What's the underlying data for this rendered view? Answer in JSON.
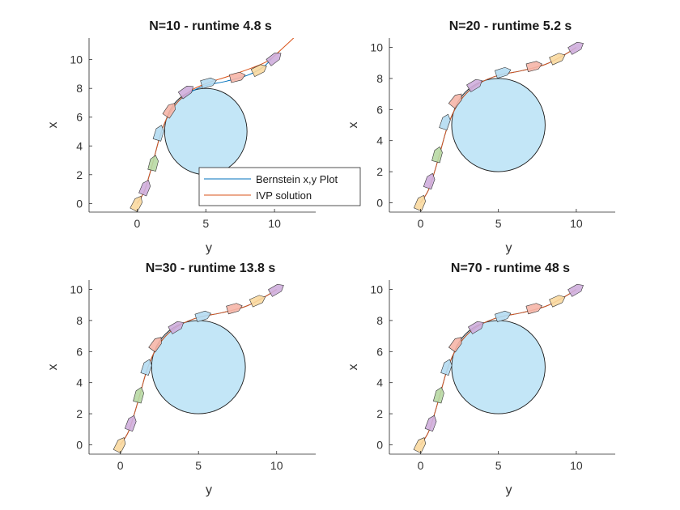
{
  "figure_bg": "#ffffff",
  "colors": {
    "bernstein": "#0072bd",
    "ivp": "#d95319",
    "obstacle_fill": "#c3e6f7",
    "obstacle_edge": "#1a1a1a",
    "vehicle_palette": [
      "#f9d9a0",
      "#cfaedd",
      "#b8d9a4",
      "#b4dcf2",
      "#f6b6a8",
      "#cfaedd",
      "#b4dcf2",
      "#f6b6a8",
      "#f9d9a0",
      "#cfaedd",
      "#b8d9a4"
    ]
  },
  "chart_data": [
    {
      "type": "line",
      "title": "N=10 - runtime 4.8 s",
      "xlabel": "y",
      "ylabel": "x",
      "xlim": [
        -3.5,
        13
      ],
      "ylim": [
        -0.6,
        11.5
      ],
      "xticks": [
        0,
        5,
        10
      ],
      "yticks": [
        0,
        2,
        4,
        6,
        8,
        10
      ],
      "grid": false,
      "legend": {
        "placement": "bottom-right",
        "entries": [
          "Bernstein x,y Plot",
          "IVP solution"
        ]
      },
      "obstacle": {
        "shape": "circle",
        "center": [
          5,
          5
        ],
        "radius": 3
      },
      "series": [
        {
          "name": "Bernstein x,y Plot",
          "color": "#0072bd",
          "points": [
            [
              0,
              0
            ],
            [
              0.5,
              0.8
            ],
            [
              0.9,
              2
            ],
            [
              1.3,
              3.4
            ],
            [
              1.7,
              4.8
            ],
            [
              2.2,
              6
            ],
            [
              2.9,
              7
            ],
            [
              3.8,
              7.7
            ],
            [
              5,
              8.2
            ],
            [
              6.5,
              8.5
            ],
            [
              8,
              8.9
            ],
            [
              9.2,
              9.5
            ],
            [
              10,
              10.3
            ]
          ]
        },
        {
          "name": "IVP solution",
          "color": "#d95319",
          "points": [
            [
              0,
              0
            ],
            [
              0.5,
              0.8
            ],
            [
              0.9,
              2
            ],
            [
              1.3,
              3.4
            ],
            [
              1.7,
              4.8
            ],
            [
              2.2,
              6
            ],
            [
              3,
              7.1
            ],
            [
              4,
              7.9
            ],
            [
              5.2,
              8.4
            ],
            [
              6.5,
              8.8
            ],
            [
              8,
              9.3
            ],
            [
              9.5,
              9.9
            ],
            [
              10.6,
              10.8
            ],
            [
              11.5,
              11.6
            ]
          ]
        }
      ],
      "vehicles": [
        [
          0,
          0
        ],
        [
          0.6,
          1.1
        ],
        [
          1.2,
          2.8
        ],
        [
          1.6,
          4.9
        ],
        [
          2.4,
          6.5
        ],
        [
          3.6,
          7.8
        ],
        [
          5.2,
          8.4
        ],
        [
          7.3,
          8.8
        ],
        [
          8.9,
          9.3
        ],
        [
          10,
          10.1
        ]
      ]
    },
    {
      "type": "line",
      "title": "N=20 - runtime 5.2 s",
      "xlabel": "y",
      "ylabel": "x",
      "xlim": [
        -2,
        12.5
      ],
      "ylim": [
        -0.6,
        10.6
      ],
      "xticks": [
        0,
        5,
        10
      ],
      "yticks": [
        0,
        2,
        4,
        6,
        8,
        10
      ],
      "grid": false,
      "obstacle": {
        "shape": "circle",
        "center": [
          5,
          5
        ],
        "radius": 3
      },
      "series": [
        {
          "name": "Bernstein x,y Plot",
          "color": "#0072bd",
          "points": [
            [
              0,
              0
            ],
            [
              0.5,
              0.8
            ],
            [
              0.9,
              2
            ],
            [
              1.3,
              3.4
            ],
            [
              1.7,
              4.8
            ],
            [
              2.2,
              6
            ],
            [
              2.9,
              7
            ],
            [
              3.8,
              7.7
            ],
            [
              5,
              8.2
            ],
            [
              6.5,
              8.5
            ],
            [
              8,
              8.9
            ],
            [
              9.2,
              9.5
            ],
            [
              10,
              10
            ]
          ]
        },
        {
          "name": "IVP solution",
          "color": "#d95319",
          "points": [
            [
              0,
              0
            ],
            [
              0.5,
              0.8
            ],
            [
              0.9,
              2
            ],
            [
              1.3,
              3.4
            ],
            [
              1.7,
              4.8
            ],
            [
              2.2,
              6
            ],
            [
              2.9,
              7
            ],
            [
              3.8,
              7.7
            ],
            [
              5,
              8.2
            ],
            [
              6.5,
              8.5
            ],
            [
              8,
              8.9
            ],
            [
              9.2,
              9.5
            ],
            [
              10,
              10
            ]
          ]
        }
      ],
      "vehicles": [
        [
          0,
          0
        ],
        [
          0.6,
          1.4
        ],
        [
          1.1,
          3.1
        ],
        [
          1.6,
          5.2
        ],
        [
          2.3,
          6.6
        ],
        [
          3.5,
          7.6
        ],
        [
          5.3,
          8.4
        ],
        [
          7.3,
          8.8
        ],
        [
          8.8,
          9.3
        ],
        [
          10,
          10
        ]
      ]
    },
    {
      "type": "line",
      "title": "N=30 - runtime 13.8 s",
      "xlabel": "y",
      "ylabel": "x",
      "xlim": [
        -2,
        12.5
      ],
      "ylim": [
        -0.6,
        10.6
      ],
      "xticks": [
        0,
        5,
        10
      ],
      "yticks": [
        0,
        2,
        4,
        6,
        8,
        10
      ],
      "grid": false,
      "obstacle": {
        "shape": "circle",
        "center": [
          5,
          5
        ],
        "radius": 3
      },
      "series": [
        {
          "name": "Bernstein x,y Plot",
          "color": "#0072bd",
          "points": [
            [
              0,
              0
            ],
            [
              0.5,
              0.8
            ],
            [
              0.9,
              2
            ],
            [
              1.3,
              3.4
            ],
            [
              1.7,
              4.8
            ],
            [
              2.2,
              6
            ],
            [
              2.9,
              7
            ],
            [
              3.8,
              7.7
            ],
            [
              5,
              8.2
            ],
            [
              6.5,
              8.5
            ],
            [
              8,
              8.9
            ],
            [
              9.2,
              9.5
            ],
            [
              10,
              10
            ]
          ]
        },
        {
          "name": "IVP solution",
          "color": "#d95319",
          "points": [
            [
              0,
              0
            ],
            [
              0.5,
              0.8
            ],
            [
              0.9,
              2
            ],
            [
              1.3,
              3.4
            ],
            [
              1.7,
              4.8
            ],
            [
              2.2,
              6
            ],
            [
              2.9,
              7
            ],
            [
              3.8,
              7.7
            ],
            [
              5,
              8.2
            ],
            [
              6.5,
              8.5
            ],
            [
              8,
              8.9
            ],
            [
              9.2,
              9.5
            ],
            [
              10,
              10
            ]
          ]
        }
      ],
      "vehicles": [
        [
          0,
          0
        ],
        [
          0.7,
          1.4
        ],
        [
          1.2,
          3.2
        ],
        [
          1.7,
          5
        ],
        [
          2.3,
          6.5
        ],
        [
          3.6,
          7.6
        ],
        [
          5.3,
          8.3
        ],
        [
          7.3,
          8.8
        ],
        [
          8.8,
          9.3
        ],
        [
          10,
          10
        ]
      ]
    },
    {
      "type": "line",
      "title": "N=70 - runtime 48 s",
      "xlabel": "y",
      "ylabel": "x",
      "xlim": [
        -2,
        12.5
      ],
      "ylim": [
        -0.6,
        10.6
      ],
      "xticks": [
        0,
        5,
        10
      ],
      "yticks": [
        0,
        2,
        4,
        6,
        8,
        10
      ],
      "grid": false,
      "obstacle": {
        "shape": "circle",
        "center": [
          5,
          5
        ],
        "radius": 3
      },
      "series": [
        {
          "name": "Bernstein x,y Plot",
          "color": "#0072bd",
          "points": [
            [
              0,
              0
            ],
            [
              0.5,
              0.8
            ],
            [
              0.9,
              2
            ],
            [
              1.3,
              3.4
            ],
            [
              1.7,
              4.8
            ],
            [
              2.2,
              6
            ],
            [
              2.9,
              7
            ],
            [
              3.8,
              7.7
            ],
            [
              5,
              8.2
            ],
            [
              6.5,
              8.5
            ],
            [
              8,
              8.9
            ],
            [
              9.2,
              9.5
            ],
            [
              10,
              10
            ]
          ]
        },
        {
          "name": "IVP solution",
          "color": "#d95319",
          "points": [
            [
              0,
              0
            ],
            [
              0.5,
              0.8
            ],
            [
              0.9,
              2
            ],
            [
              1.3,
              3.4
            ],
            [
              1.7,
              4.8
            ],
            [
              2.2,
              6
            ],
            [
              2.9,
              7
            ],
            [
              3.8,
              7.7
            ],
            [
              5,
              8.2
            ],
            [
              6.5,
              8.5
            ],
            [
              8,
              8.9
            ],
            [
              9.2,
              9.5
            ],
            [
              10,
              10
            ]
          ]
        }
      ],
      "vehicles": [
        [
          0,
          0
        ],
        [
          0.7,
          1.4
        ],
        [
          1.2,
          3.2
        ],
        [
          1.7,
          5
        ],
        [
          2.3,
          6.5
        ],
        [
          3.6,
          7.6
        ],
        [
          5.3,
          8.3
        ],
        [
          7.3,
          8.8
        ],
        [
          8.8,
          9.3
        ],
        [
          10,
          10
        ]
      ]
    }
  ]
}
